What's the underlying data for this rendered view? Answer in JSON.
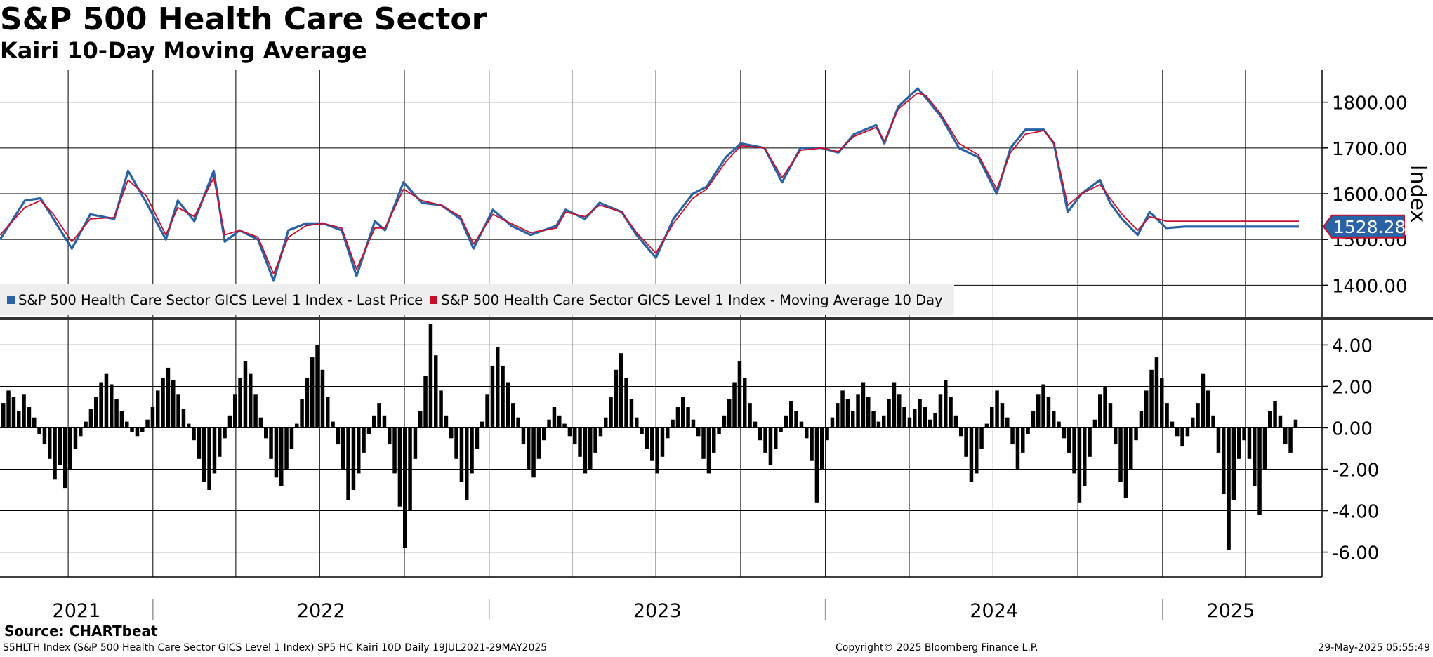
{
  "title": "S&P 500 Health Care Sector",
  "subtitle": "Kairi 10-Day Moving Average",
  "legend": {
    "items": [
      {
        "label": "S&P 500 Health Care Sector GICS Level 1 Index - Last Price",
        "color": "#2a62a6"
      },
      {
        "label": "S&P 500 Health Care Sector GICS Level 1 Index - Moving Average 10 Day",
        "color": "#c8102e"
      }
    ]
  },
  "source": "Source: CHARTbeat",
  "footer": {
    "left": "S5HLTH Index (S&P 500 Health Care Sector GICS Level 1 Index) SP5 HC Kairi 10D  Daily 19JUL2021-29MAY2025",
    "middle": "Copyright© 2025 Bloomberg Finance L.P.",
    "right": "29-May-2025 05:55:49"
  },
  "chart_data": [
    {
      "type": "line",
      "title": "S&P 500 Health Care Sector",
      "ylabel": "Index",
      "ylim": [
        1330,
        1870
      ],
      "yticks": [
        "1400.00",
        "1500.00",
        "1600.00",
        "1700.00",
        "1800.00"
      ],
      "last_value_label": "1528.28",
      "x": [
        "2021-07-19",
        "2021-08-15",
        "2021-09-01",
        "2021-09-15",
        "2021-10-05",
        "2021-10-25",
        "2021-11-20",
        "2021-12-05",
        "2021-12-25",
        "2022-01-15",
        "2022-01-28",
        "2022-02-15",
        "2022-03-08",
        "2022-03-20",
        "2022-04-05",
        "2022-04-25",
        "2022-05-12",
        "2022-05-28",
        "2022-06-16",
        "2022-07-05",
        "2022-07-25",
        "2022-08-10",
        "2022-08-30",
        "2022-09-10",
        "2022-09-30",
        "2022-10-20",
        "2022-11-10",
        "2022-12-01",
        "2022-12-15",
        "2023-01-05",
        "2023-01-25",
        "2023-02-15",
        "2023-03-15",
        "2023-03-25",
        "2023-04-15",
        "2023-05-01",
        "2023-05-25",
        "2023-06-10",
        "2023-07-01",
        "2023-07-20",
        "2023-08-10",
        "2023-08-25",
        "2023-09-15",
        "2023-10-01",
        "2023-10-27",
        "2023-11-15",
        "2023-12-05",
        "2023-12-28",
        "2024-01-15",
        "2024-02-01",
        "2024-02-25",
        "2024-03-05",
        "2024-03-20",
        "2024-04-10",
        "2024-04-19",
        "2024-05-05",
        "2024-05-25",
        "2024-06-15",
        "2024-07-05",
        "2024-07-20",
        "2024-08-05",
        "2024-08-25",
        "2024-09-05",
        "2024-09-20",
        "2024-10-05",
        "2024-10-25",
        "2024-11-05",
        "2024-11-18",
        "2024-12-05",
        "2024-12-18",
        "2025-01-05",
        "2025-01-25",
        "2025-02-15",
        "2025-03-05",
        "2025-03-15",
        "2025-03-25",
        "2025-04-05",
        "2025-04-10",
        "2025-04-25",
        "2025-05-05",
        "2025-05-15",
        "2025-05-29"
      ],
      "series": [
        {
          "name": "S&P 500 Health Care Sector GICS Level 1 Index - Last Price",
          "color": "#2a62a6",
          "values": [
            1500,
            1585,
            1590,
            1545,
            1480,
            1555,
            1545,
            1650,
            1580,
            1500,
            1585,
            1540,
            1650,
            1495,
            1520,
            1500,
            1410,
            1520,
            1535,
            1535,
            1520,
            1420,
            1540,
            1520,
            1625,
            1580,
            1575,
            1545,
            1480,
            1565,
            1530,
            1510,
            1530,
            1565,
            1545,
            1580,
            1560,
            1510,
            1460,
            1545,
            1600,
            1615,
            1680,
            1710,
            1700,
            1625,
            1700,
            1700,
            1690,
            1730,
            1750,
            1710,
            1790,
            1830,
            1810,
            1770,
            1700,
            1680,
            1600,
            1700,
            1740,
            1740,
            1710,
            1560,
            1600,
            1630,
            1580,
            1545,
            1510,
            1560,
            1525,
            1528.28,
            1528.28,
            1528.28,
            1528.28,
            1528.28,
            1528.28,
            1528.28,
            1528.28,
            1528.28,
            1528.28,
            1528.28
          ]
        },
        {
          "name": "S&P 500 Health Care Sector GICS Level 1 Index - Moving Average 10 Day",
          "color": "#c8102e",
          "values": [
            1510,
            1570,
            1585,
            1555,
            1495,
            1545,
            1548,
            1630,
            1595,
            1510,
            1570,
            1550,
            1635,
            1510,
            1520,
            1505,
            1425,
            1505,
            1530,
            1535,
            1525,
            1435,
            1525,
            1525,
            1610,
            1585,
            1575,
            1550,
            1490,
            1555,
            1535,
            1515,
            1525,
            1560,
            1550,
            1575,
            1560,
            1515,
            1470,
            1535,
            1590,
            1610,
            1670,
            1705,
            1700,
            1635,
            1695,
            1700,
            1692,
            1725,
            1745,
            1715,
            1785,
            1820,
            1815,
            1775,
            1710,
            1685,
            1610,
            1690,
            1730,
            1738,
            1712,
            1575,
            1600,
            1620,
            1590,
            1555,
            1520,
            1550,
            1540,
            1540,
            1540,
            1540,
            1540,
            1540,
            1540,
            1540,
            1540,
            1540,
            1540,
            1540
          ]
        }
      ]
    },
    {
      "type": "bar",
      "title": "Kairi 10-Day Moving Average",
      "ylim": [
        -7.2,
        5.2
      ],
      "yticks": [
        "-6.00",
        "-4.00",
        "-2.00",
        "0.00",
        "2.00",
        "4.00"
      ],
      "x_labels": [
        "2021",
        "2022",
        "2023",
        "2024",
        "2025"
      ],
      "x_range": [
        "2021-07-19",
        "2025-05-29"
      ],
      "series": [
        {
          "name": "Kairi",
          "color": "#000000",
          "values": [
            1.2,
            1.8,
            1.5,
            0.8,
            1.6,
            1.0,
            0.5,
            -0.3,
            -0.8,
            -1.5,
            -2.5,
            -1.8,
            -2.9,
            -2.0,
            -1.0,
            -0.4,
            0.3,
            0.9,
            1.5,
            2.2,
            2.6,
            2.1,
            1.4,
            0.8,
            0.3,
            -0.2,
            -0.4,
            -0.2,
            0.4,
            1.0,
            1.8,
            2.4,
            2.9,
            2.3,
            1.6,
            0.9,
            0.2,
            -0.6,
            -1.5,
            -2.6,
            -3.0,
            -2.2,
            -1.4,
            -0.5,
            0.6,
            1.6,
            2.4,
            3.2,
            2.6,
            1.6,
            0.5,
            -0.5,
            -1.5,
            -2.4,
            -2.8,
            -2.0,
            -1.0,
            0.2,
            1.4,
            2.4,
            3.4,
            4.0,
            2.8,
            1.5,
            0.3,
            -0.8,
            -2.0,
            -3.5,
            -3.0,
            -2.2,
            -1.2,
            -0.3,
            0.6,
            1.2,
            0.6,
            -0.8,
            -2.2,
            -3.8,
            -5.8,
            -4.0,
            -1.5,
            0.8,
            2.5,
            5.0,
            3.5,
            1.8,
            0.6,
            -0.5,
            -1.5,
            -2.6,
            -3.5,
            -2.2,
            -1.0,
            0.3,
            1.6,
            3.0,
            3.9,
            3.0,
            2.2,
            1.2,
            0.5,
            -0.8,
            -2.0,
            -2.4,
            -1.5,
            -0.6,
            0.4,
            1.0,
            0.6,
            0.2,
            -0.4,
            -0.8,
            -1.4,
            -2.2,
            -2.0,
            -1.2,
            -0.4,
            0.5,
            1.5,
            2.8,
            3.6,
            2.4,
            1.4,
            0.5,
            -0.3,
            -1.0,
            -1.6,
            -2.2,
            -1.4,
            -0.5,
            0.4,
            1.0,
            1.5,
            1.0,
            0.4,
            -0.4,
            -1.5,
            -2.2,
            -1.2,
            -0.3,
            0.6,
            1.4,
            2.2,
            3.2,
            2.4,
            1.2,
            0.3,
            -0.6,
            -1.2,
            -1.8,
            -1.0,
            -0.2,
            0.6,
            1.3,
            0.8,
            0.3,
            -0.5,
            -1.6,
            -3.6,
            -2.0,
            -0.6,
            0.5,
            1.2,
            1.8,
            1.4,
            0.8,
            1.6,
            2.2,
            1.5,
            0.8,
            0.3,
            0.6,
            1.4,
            2.2,
            1.6,
            1.0,
            0.5,
            0.9,
            1.4,
            1.0,
            0.4,
            0.7,
            1.6,
            2.3,
            1.5,
            0.6,
            -0.4,
            -1.4,
            -2.6,
            -2.2,
            -1.0,
            0.2,
            1.0,
            1.8,
            1.2,
            0.5,
            -0.8,
            -2.0,
            -1.2,
            -0.3,
            0.8,
            1.6,
            2.1,
            1.5,
            0.8,
            0.3,
            -0.5,
            -1.2,
            -2.2,
            -3.6,
            -2.8,
            -1.4,
            0.4,
            1.6,
            2.0,
            1.2,
            -0.8,
            -2.6,
            -3.4,
            -2.0,
            -0.6,
            0.8,
            1.8,
            2.8,
            3.4,
            2.4,
            1.2,
            0.3,
            -0.4,
            -0.9,
            -0.4,
            0.5,
            1.2,
            2.6,
            1.8,
            0.6,
            -1.2,
            -3.2,
            -5.9,
            -3.5,
            -1.5,
            -0.6,
            -1.5,
            -2.8,
            -4.2,
            -2.0,
            0.8,
            1.3,
            0.6,
            -0.8,
            -1.2,
            0.4
          ]
        }
      ]
    }
  ]
}
